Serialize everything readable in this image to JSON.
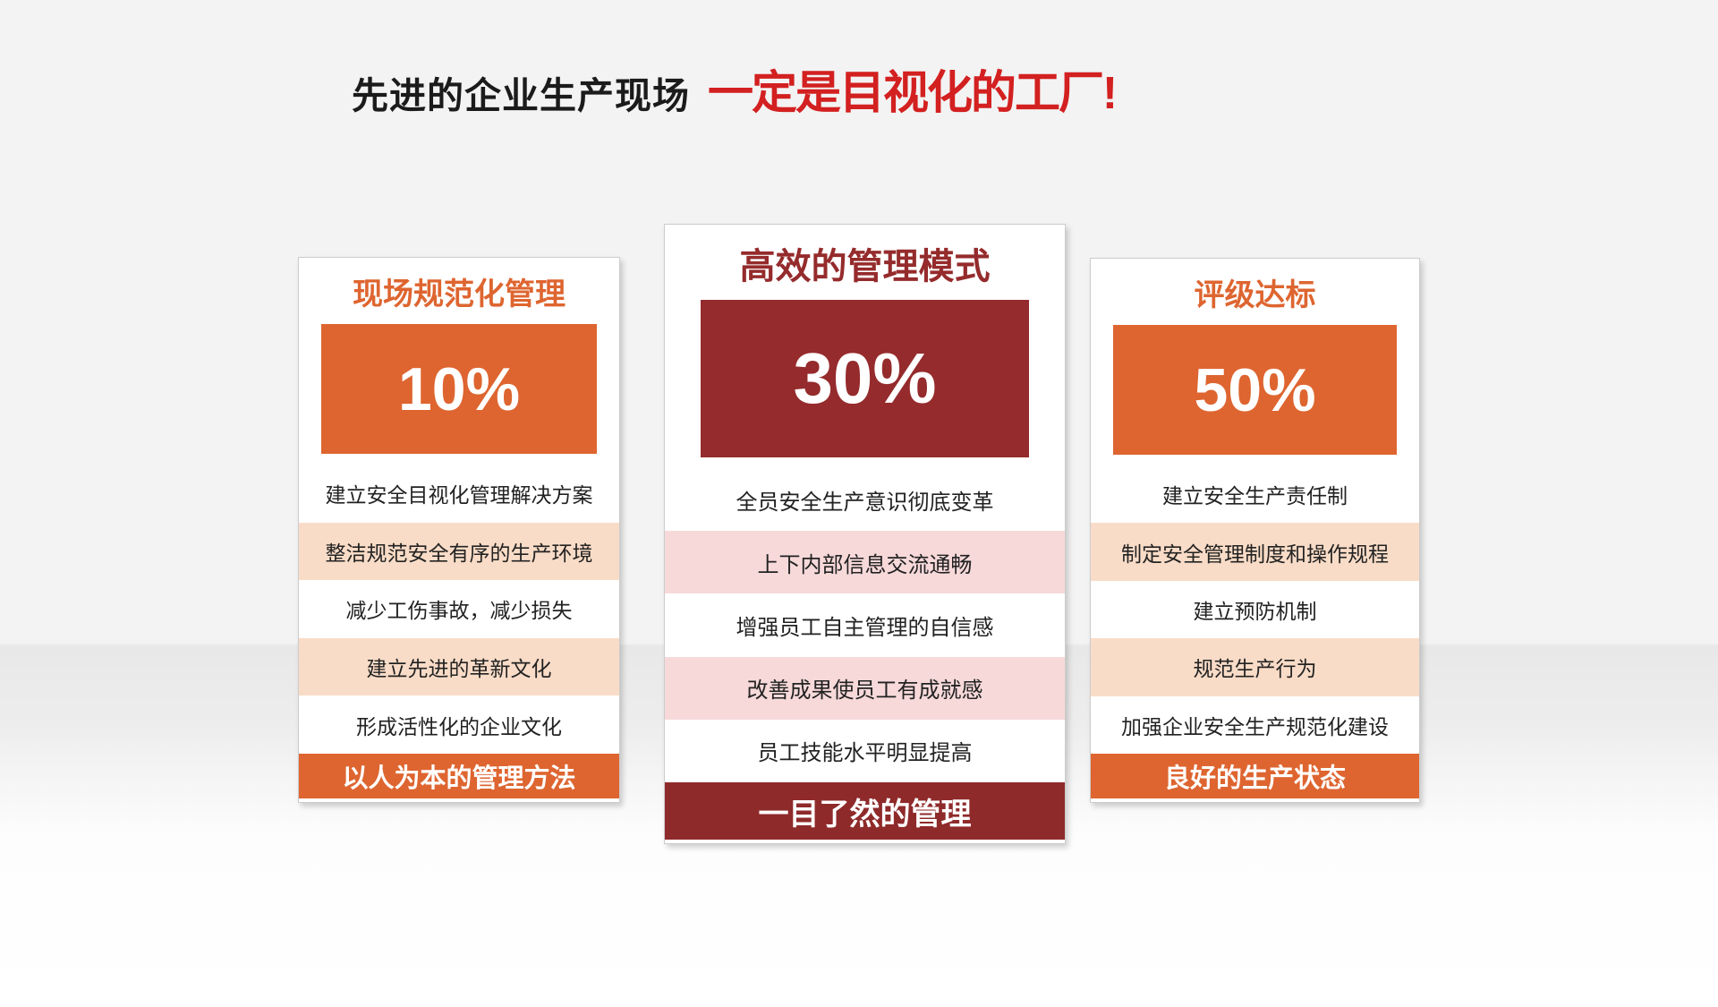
{
  "title": {
    "prefix": "先进的企业生产现场",
    "emphasis": "一定是目视化的工厂!"
  },
  "colors": {
    "orange": "#de6530",
    "maroon": "#952b2c",
    "maroon_dark": "#8f2a2b",
    "peach": "#f9dcc7",
    "pink": "#f7d9da",
    "title_red": "#d32020",
    "title_black": "#1b1b1b"
  },
  "cards": [
    {
      "heading": "现场规范化管理",
      "percent": "10%",
      "items": [
        {
          "text": "建立安全目视化管理解决方案",
          "highlight": false
        },
        {
          "text": "整洁规范安全有序的生产环境",
          "highlight": true
        },
        {
          "text": "减少工伤事故，减少损失",
          "highlight": false
        },
        {
          "text": "建立先进的革新文化",
          "highlight": true
        },
        {
          "text": "形成活性化的企业文化",
          "highlight": false
        }
      ],
      "footer": "以人为本的管理方法"
    },
    {
      "heading": "高效的管理模式",
      "percent": "30%",
      "items": [
        {
          "text": "全员安全生产意识彻底变革",
          "highlight": false
        },
        {
          "text": "上下内部信息交流通畅",
          "highlight": true
        },
        {
          "text": "增强员工自主管理的自信感",
          "highlight": false
        },
        {
          "text": "改善成果使员工有成就感",
          "highlight": true
        },
        {
          "text": "员工技能水平明显提高",
          "highlight": false
        }
      ],
      "footer": "一目了然的管理"
    },
    {
      "heading": "评级达标",
      "percent": "50%",
      "items": [
        {
          "text": "建立安全生产责任制",
          "highlight": false
        },
        {
          "text": "制定安全管理制度和操作规程",
          "highlight": true
        },
        {
          "text": "建立预防机制",
          "highlight": false
        },
        {
          "text": "规范生产行为",
          "highlight": true
        },
        {
          "text": "加强企业安全生产规范化建设",
          "highlight": false
        }
      ],
      "footer": "良好的生产状态"
    }
  ]
}
